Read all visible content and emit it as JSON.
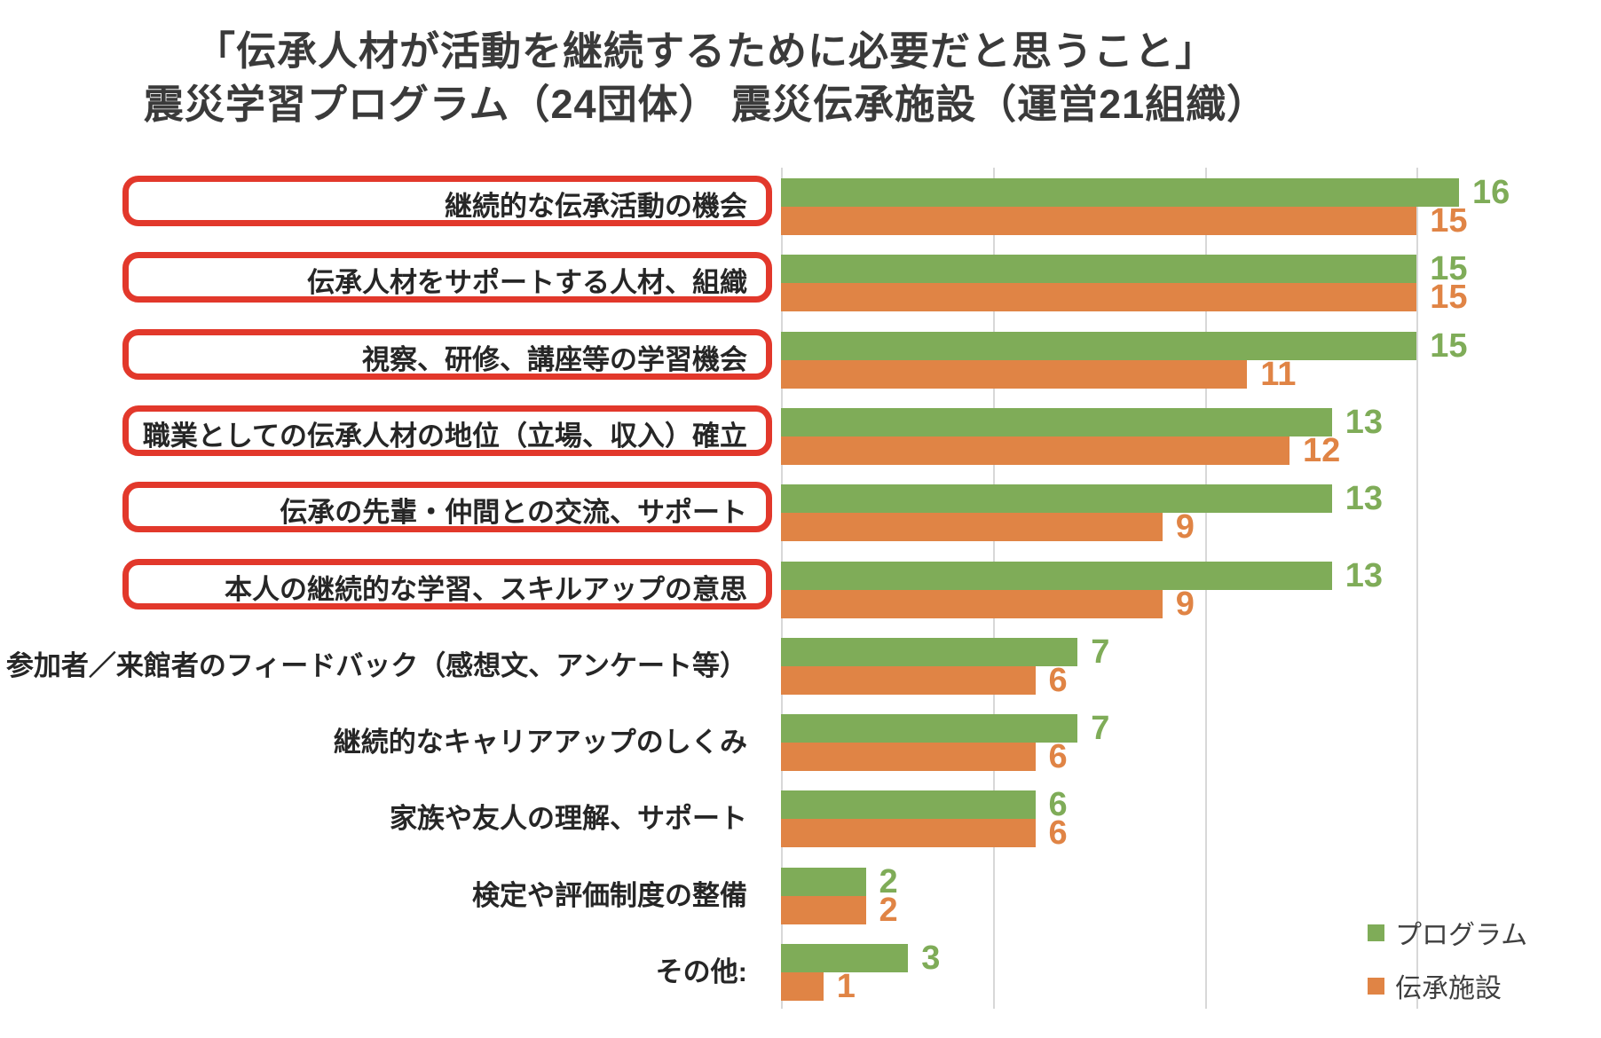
{
  "title": {
    "line1": "「伝承人材が活動を継続するために必要だと思うこと」",
    "line2": "震災学習プログラム（24団体） 震災伝承施設（運営21組織）"
  },
  "legend": [
    {
      "label": "プログラム",
      "color": "#7FAC58"
    },
    {
      "label": "伝承施設",
      "color": "#E08445"
    }
  ],
  "colors": {
    "program_green": "#7FAC58",
    "facility_orange": "#E08445",
    "highlight_box_red": "#E2382B",
    "gridline_gray": "#D8D8D8",
    "title_text": "#3A3A3A",
    "category_text": "#262626",
    "legend_text": "#3F3F3F"
  },
  "chart_data": {
    "type": "bar",
    "orientation": "horizontal",
    "title": "「伝承人材が活動を継続するために必要だと思うこと」 震災学習プログラム（24団体） 震災伝承施設（運営21組織）",
    "categories": [
      "継続的な伝承活動の機会",
      "伝承人材をサポートする人材、組織",
      "視察、研修、講座等の学習機会",
      "職業としての伝承人材の地位（立場、収入）確立",
      "伝承の先輩・仲間との交流、サポート",
      "本人の継続的な学習、スキルアップの意思",
      "参加者／来館者のフィードバック（感想文、アンケート等）",
      "継続的なキャリアアップのしくみ",
      "家族や友人の理解、サポート",
      "検定や評価制度の整備",
      "その他:"
    ],
    "highlighted_categories": [
      true,
      true,
      true,
      true,
      true,
      true,
      false,
      false,
      false,
      false,
      false
    ],
    "series": [
      {
        "name": "プログラム",
        "color": "#7FAC58",
        "values": [
          16,
          15,
          15,
          13,
          13,
          13,
          7,
          7,
          6,
          2,
          3
        ]
      },
      {
        "name": "伝承施設",
        "color": "#E08445",
        "values": [
          15,
          15,
          11,
          12,
          9,
          9,
          6,
          6,
          6,
          2,
          1
        ]
      }
    ],
    "xlim": [
      0,
      19.3
    ],
    "x_gridlines": [
      0,
      5,
      10,
      15
    ],
    "axis_tick_labels_shown": false,
    "data_labels": true,
    "legend_position": "bottom-right",
    "highlight_note": "top 6 categories outlined with red rounded rectangles"
  }
}
